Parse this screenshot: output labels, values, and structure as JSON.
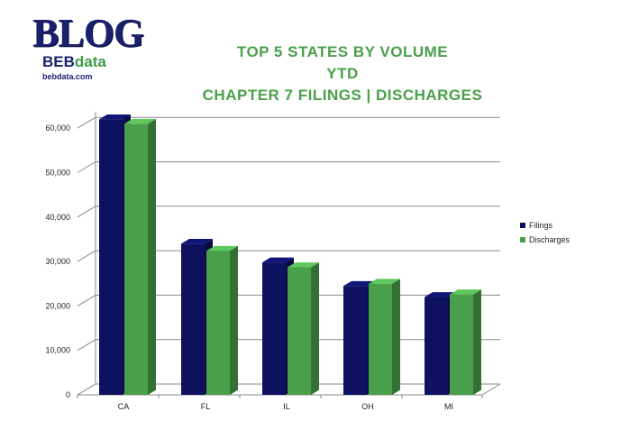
{
  "logo": {
    "main": "BLOG",
    "sub_prefix": "BEB",
    "sub_accent": "data",
    "url": "bebdata.com"
  },
  "colors": {
    "title": "#4aa04a",
    "filings": "#0d1160",
    "discharges": "#4aa04a",
    "logo": "#1a1f6e"
  },
  "chart_data": {
    "type": "bar",
    "title": [
      "TOP 5 STATES BY VOLUME",
      "YTD",
      "CHAPTER 7 FILINGS | DISCHARGES"
    ],
    "categories": [
      "CA",
      "FL",
      "IL",
      "OH",
      "MI"
    ],
    "series": [
      {
        "name": "Filings",
        "values": [
          62000,
          34000,
          29800,
          24500,
          22000
        ]
      },
      {
        "name": "Discharges",
        "values": [
          61000,
          32400,
          28700,
          25000,
          22600
        ]
      }
    ],
    "ylim": [
      0,
      60000
    ],
    "yticks": [
      0,
      10000,
      20000,
      30000,
      40000,
      50000,
      60000
    ],
    "ytick_labels": [
      "0",
      "10,000",
      "20,000",
      "30,000",
      "40,000",
      "50,000",
      "60,000"
    ],
    "grid": true,
    "legend": "right",
    "style": "3d-bar"
  }
}
